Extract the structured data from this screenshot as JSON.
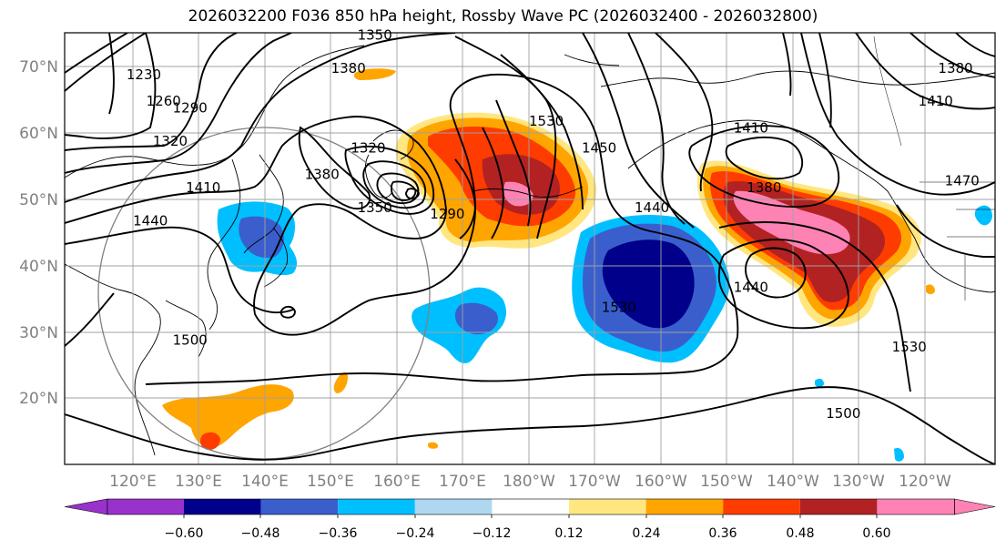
{
  "title": "2026032200 F036 850 hPa height, Rossby Wave PC (2026032400 - 2026032800)",
  "lat_labels": [
    "70°N",
    "60°N",
    "50°N",
    "40°N",
    "30°N",
    "20°N"
  ],
  "lon_labels": [
    "120°E",
    "130°E",
    "140°E",
    "150°E",
    "160°E",
    "170°E",
    "180°W",
    "170°W",
    "160°W",
    "150°W",
    "140°W",
    "130°W",
    "120°W"
  ],
  "colorbar": {
    "tick_labels": [
      "−0.60",
      "−0.48",
      "−0.36",
      "−0.24",
      "−0.12",
      "0.12",
      "0.24",
      "0.36",
      "0.48",
      "0.60"
    ],
    "ticks": [
      -0.6,
      -0.48,
      -0.36,
      -0.24,
      -0.12,
      0.12,
      0.24,
      0.36,
      0.48,
      0.6
    ],
    "colors": [
      "#9932cc",
      "#00008b",
      "#3a5fcd",
      "#00bfff",
      "#add8f0",
      "#ffffff",
      "#ffe680",
      "#ffa500",
      "#ff3c00",
      "#b22222",
      "#ff82b4"
    ]
  },
  "contour_labels": [
    {
      "text": "1230",
      "lon": 124,
      "lat": 68
    },
    {
      "text": "1260",
      "lon": 127,
      "lat": 64
    },
    {
      "text": "1290",
      "lon": 131,
      "lat": 63
    },
    {
      "text": "1320",
      "lon": 128,
      "lat": 58
    },
    {
      "text": "1350",
      "lon": 159,
      "lat": 74
    },
    {
      "text": "1380",
      "lon": 155,
      "lat": 69
    },
    {
      "text": "1320",
      "lon": 158,
      "lat": 57
    },
    {
      "text": "1380",
      "lon": 151,
      "lat": 53
    },
    {
      "text": "1410",
      "lon": 133,
      "lat": 51
    },
    {
      "text": "1440",
      "lon": 125,
      "lat": 46
    },
    {
      "text": "1350",
      "lon": 159,
      "lat": 48
    },
    {
      "text": "1290",
      "lon": 170,
      "lat": 47
    },
    {
      "text": "1530",
      "lon": 185,
      "lat": 61
    },
    {
      "text": "1450",
      "lon": 193,
      "lat": 57
    },
    {
      "text": "1440",
      "lon": 201,
      "lat": 48
    },
    {
      "text": "1410",
      "lon": 216,
      "lat": 60
    },
    {
      "text": "1380",
      "lon": 218,
      "lat": 51
    },
    {
      "text": "1440",
      "lon": 216,
      "lat": 36
    },
    {
      "text": "1530",
      "lon": 196,
      "lat": 33
    },
    {
      "text": "1500",
      "lon": 131,
      "lat": 28
    },
    {
      "text": "1500",
      "lon": 230,
      "lat": 17
    },
    {
      "text": "1530",
      "lon": 240,
      "lat": 27
    },
    {
      "text": "1470",
      "lon": 248,
      "lat": 52
    },
    {
      "text": "1410",
      "lon": 244,
      "lat": 64
    },
    {
      "text": "1380",
      "lon": 247,
      "lat": 69
    }
  ],
  "map_extent": {
    "lon_min": 112,
    "lon_max": 253,
    "lat_min": 10,
    "lat_max": 75
  }
}
